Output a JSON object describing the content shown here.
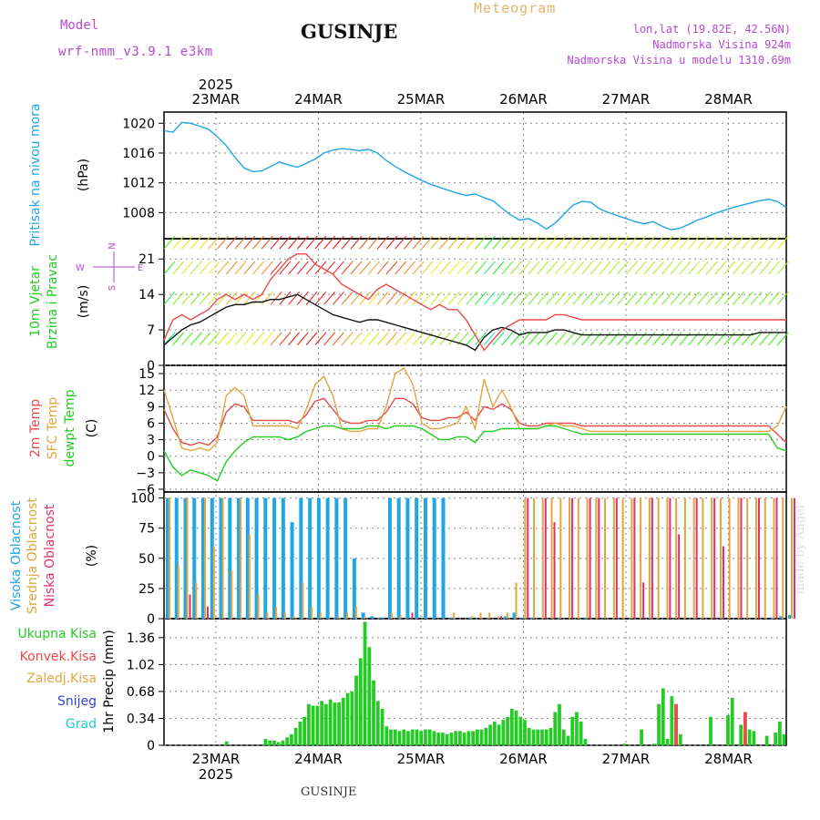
{
  "header": {
    "model_label": "Model",
    "model_version": "wrf-nmm_v3.9.1 e3km",
    "location": "GUSINJE",
    "meteogram_label": "Meteogram",
    "lonlat": "lon,lat (19.82E, 42.56N)",
    "elevation": "Nadmorska Visina 924m",
    "model_elevation": "Nadmorska Visina u modelu 1310.69m"
  },
  "footer": {
    "location": "GUSINJE",
    "credit": "made by Angel"
  },
  "time_axis": {
    "year": "2025",
    "labels": [
      "23MAR",
      "24MAR",
      "25MAR",
      "26MAR",
      "27MAR",
      "28MAR"
    ]
  },
  "colors": {
    "pressure": "#1ea6e6",
    "wind_speed": "#111111",
    "gust": "#e84a4a",
    "temp_2m": "#e84a4a",
    "temp_sfc": "#e0a640",
    "dewpoint": "#22cc22",
    "cloud_high": "#1ea6e6",
    "cloud_mid": "#e0a640",
    "cloud_low": "#e03070",
    "precip": "#22cc22",
    "precip_conv": "#e84a4a"
  },
  "chart_data": [
    {
      "type": "line",
      "panel": "pressure",
      "ylabel": "Pritisak na nivou mora",
      "units": "(hPa)",
      "ylim": [
        1004.5,
        1021.5
      ],
      "yticks": [
        1008,
        1012,
        1016,
        1020
      ],
      "xlim": [
        0,
        70
      ],
      "grid": true,
      "series": [
        {
          "name": "MSLP",
          "values": [
            1019.0,
            1018.8,
            1020.1,
            1020.0,
            1019.6,
            1019.2,
            1018.2,
            1017.0,
            1015.4,
            1014.0,
            1013.5,
            1013.6,
            1014.2,
            1014.8,
            1014.4,
            1014.1,
            1014.6,
            1015.2,
            1016.0,
            1016.4,
            1016.6,
            1016.5,
            1016.3,
            1016.5,
            1016.0,
            1015.0,
            1014.2,
            1013.5,
            1012.9,
            1012.3,
            1011.8,
            1011.4,
            1011.0,
            1010.6,
            1010.3,
            1010.5,
            1010.0,
            1009.6,
            1008.6,
            1007.7,
            1007.0,
            1007.2,
            1006.6,
            1005.8,
            1006.6,
            1007.8,
            1009.0,
            1009.5,
            1009.4,
            1008.5,
            1008.0,
            1007.6,
            1007.2,
            1006.8,
            1006.5,
            1006.8,
            1006.2,
            1005.7,
            1005.9,
            1006.4,
            1007.0,
            1007.4,
            1007.9,
            1008.3,
            1008.7,
            1009.0,
            1009.3,
            1009.6,
            1009.8,
            1009.5,
            1008.7
          ]
        }
      ]
    },
    {
      "type": "line",
      "panel": "wind",
      "ylabel": "10m Vjetar Brzina i Pravac",
      "units": "(m/s)",
      "ylim": [
        0,
        25
      ],
      "yticks": [
        0,
        7,
        14,
        21
      ],
      "compass": {
        "n": "N",
        "s": "S",
        "e": "E",
        "w": "W"
      },
      "series": [
        {
          "name": "Speed",
          "values": [
            4.0,
            5.5,
            7.0,
            8.0,
            8.5,
            9.5,
            10.5,
            11.5,
            12.0,
            12.0,
            12.5,
            12.5,
            13.0,
            13.0,
            13.5,
            14.0,
            13.0,
            12.0,
            11.0,
            10.0,
            9.5,
            9.0,
            8.5,
            9.0,
            9.0,
            8.5,
            8.0,
            7.5,
            7.0,
            6.5,
            6.0,
            5.5,
            5.0,
            4.5,
            4.0,
            3.0,
            5.5,
            7.0,
            7.5,
            7.0,
            6.0,
            6.5,
            6.5,
            6.5,
            7.0,
            7.0,
            6.5,
            6.0,
            6.0,
            6.0,
            6.0,
            6.0,
            6.0,
            6.0,
            6.0,
            6.0,
            6.0,
            6.0,
            6.0,
            6.0,
            6.0,
            6.0,
            6.0,
            6.0,
            6.0,
            6.0,
            6.0,
            6.5,
            6.5,
            6.5,
            6.5
          ]
        },
        {
          "name": "Gust",
          "values": [
            5.0,
            9.0,
            10.0,
            9.0,
            10.0,
            11.0,
            13.0,
            14.0,
            13.0,
            14.0,
            13.0,
            14.0,
            17.0,
            19.0,
            21.0,
            22.0,
            22.0,
            20.0,
            19.0,
            18.0,
            16.0,
            15.0,
            14.0,
            13.0,
            15.0,
            16.0,
            15.0,
            14.0,
            13.0,
            12.0,
            11.0,
            12.0,
            11.0,
            11.0,
            9.0,
            6.0,
            3.0,
            5.0,
            7.0,
            8.0,
            9.0,
            9.0,
            9.0,
            9.0,
            10.0,
            10.0,
            9.5,
            9.0,
            9.0,
            9.0,
            9.0,
            9.0,
            9.0,
            9.0,
            9.0,
            9.0,
            9.0,
            9.0,
            9.0,
            9.0,
            9.0,
            9.0,
            9.0,
            9.0,
            9.0,
            9.0,
            9.0,
            9.0,
            9.0,
            9.0,
            9.0
          ]
        }
      ]
    },
    {
      "type": "line",
      "panel": "temperature",
      "ylabel": "2m Temp / SFC Temp / dewpt Temp",
      "units": "(C)",
      "ylim": [
        -6.5,
        16.5
      ],
      "yticks": [
        -6,
        -3,
        0,
        3,
        6,
        9,
        12,
        15
      ],
      "legend": [
        "2m Temp",
        "SFC Temp",
        "dewpt Temp"
      ],
      "series": [
        {
          "name": "2m Temp",
          "values": [
            8.5,
            5.0,
            2.5,
            2.0,
            2.5,
            2.0,
            3.5,
            8.0,
            9.5,
            9.0,
            6.5,
            6.5,
            6.5,
            6.5,
            6.5,
            6.0,
            7.5,
            10.0,
            10.5,
            8.5,
            6.5,
            6.0,
            6.0,
            6.5,
            6.5,
            8.0,
            10.5,
            10.5,
            9.5,
            7.0,
            6.5,
            6.5,
            7.0,
            7.0,
            8.0,
            6.5,
            9.0,
            8.5,
            9.5,
            8.5,
            6.0,
            5.5,
            5.5,
            6.0,
            6.0,
            6.0,
            6.0,
            5.5,
            5.5,
            5.5,
            5.5,
            5.5,
            5.5,
            5.5,
            5.5,
            5.5,
            5.5,
            5.5,
            5.5,
            5.5,
            5.5,
            5.5,
            5.5,
            5.5,
            5.5,
            5.5,
            5.5,
            5.5,
            5.5,
            4.0,
            2.5
          ]
        },
        {
          "name": "SFC Temp",
          "values": [
            12.0,
            7.0,
            1.5,
            1.0,
            1.5,
            1.0,
            2.5,
            11.0,
            12.5,
            11.0,
            5.5,
            5.5,
            5.5,
            5.5,
            5.5,
            5.0,
            8.5,
            13.0,
            14.5,
            11.0,
            5.0,
            4.5,
            4.5,
            5.0,
            5.0,
            9.0,
            15.0,
            16.0,
            13.0,
            6.0,
            5.0,
            5.0,
            5.5,
            6.0,
            9.0,
            5.0,
            14.0,
            9.0,
            12.0,
            9.0,
            5.0,
            5.0,
            5.0,
            5.5,
            6.0,
            5.5,
            5.5,
            5.0,
            4.5,
            4.5,
            4.5,
            4.5,
            4.5,
            4.5,
            4.5,
            4.5,
            4.5,
            4.5,
            4.5,
            4.5,
            4.5,
            4.5,
            4.5,
            4.5,
            4.5,
            4.5,
            4.5,
            4.5,
            4.5,
            5.5,
            9.0
          ]
        },
        {
          "name": "dewpt Temp",
          "values": [
            1.0,
            -2.0,
            -3.5,
            -2.5,
            -3.0,
            -3.5,
            -4.5,
            -1.0,
            1.0,
            2.5,
            3.5,
            3.5,
            3.5,
            3.5,
            3.0,
            3.5,
            4.5,
            5.0,
            5.5,
            5.5,
            5.0,
            5.0,
            5.0,
            5.5,
            5.5,
            5.0,
            5.5,
            5.5,
            5.5,
            5.0,
            4.0,
            3.0,
            3.0,
            3.5,
            3.5,
            2.5,
            4.5,
            4.5,
            5.0,
            5.0,
            5.0,
            5.0,
            5.0,
            5.5,
            5.5,
            5.0,
            4.5,
            4.0,
            4.0,
            4.0,
            4.0,
            4.0,
            4.0,
            4.0,
            4.0,
            4.0,
            4.0,
            4.0,
            4.0,
            4.0,
            4.0,
            4.0,
            4.0,
            4.0,
            4.0,
            4.0,
            4.0,
            4.0,
            4.0,
            1.5,
            1.0
          ]
        }
      ]
    },
    {
      "type": "bar",
      "panel": "clouds",
      "ylabel": "Visoka / Srednja / Niska Oblacnost",
      "units": "(%)",
      "ylim": [
        0,
        105
      ],
      "yticks": [
        0,
        25,
        50,
        75,
        100
      ],
      "legend": [
        "Visoka Oblacnost",
        "Srednja Oblacnost",
        "Niska Oblacnost"
      ],
      "series": [
        {
          "name": "Visoka Oblacnost",
          "values": [
            100,
            100,
            100,
            100,
            100,
            100,
            100,
            100,
            100,
            100,
            100,
            100,
            100,
            100,
            80,
            100,
            100,
            100,
            100,
            100,
            100,
            50,
            5,
            2,
            1,
            100,
            100,
            100,
            100,
            100,
            100,
            100,
            1,
            0,
            1,
            0,
            0,
            0,
            2,
            5,
            1,
            1,
            0,
            0,
            1,
            0,
            0,
            1,
            0,
            0,
            0,
            0,
            0,
            0,
            0,
            0,
            0,
            0,
            0,
            0,
            0,
            0,
            0,
            0,
            0,
            0,
            0,
            0,
            1,
            2,
            3
          ]
        },
        {
          "name": "Srednja Oblacnost",
          "values": [
            100,
            45,
            100,
            30,
            100,
            60,
            100,
            40,
            100,
            70,
            20,
            5,
            10,
            5,
            2,
            30,
            10,
            5,
            0,
            2,
            5,
            10,
            2,
            0,
            0,
            5,
            3,
            0,
            0,
            0,
            0,
            0,
            5,
            0,
            2,
            5,
            5,
            2,
            5,
            30,
            100,
            100,
            100,
            100,
            100,
            100,
            100,
            100,
            100,
            100,
            100,
            100,
            100,
            100,
            100,
            100,
            100,
            100,
            100,
            100,
            100,
            100,
            100,
            100,
            100,
            100,
            100,
            100,
            100,
            100,
            100
          ]
        },
        {
          "name": "Niska Oblacnost",
          "values": [
            0,
            0,
            20,
            0,
            10,
            0,
            0,
            0,
            0,
            0,
            0,
            0,
            0,
            0,
            0,
            0,
            0,
            0,
            0,
            0,
            0,
            0,
            0,
            0,
            0,
            0,
            0,
            5,
            0,
            0,
            0,
            0,
            0,
            0,
            0,
            0,
            0,
            2,
            0,
            0,
            100,
            0,
            100,
            80,
            0,
            100,
            0,
            100,
            100,
            0,
            100,
            0,
            100,
            30,
            100,
            0,
            100,
            70,
            0,
            100,
            0,
            100,
            60,
            0,
            100,
            0,
            100,
            0,
            100,
            0,
            100
          ]
        }
      ]
    },
    {
      "type": "bar",
      "panel": "precipitation",
      "ylabel": "1hr Precip",
      "units": "(mm)",
      "ylim": [
        0,
        1.6
      ],
      "yticks": [
        0,
        0.34,
        0.68,
        1.02,
        1.36
      ],
      "legend": [
        "Ukupna Kisa",
        "Konvek.Kisa",
        "Zaledj.Kisa",
        "Snijeg",
        "Grad"
      ],
      "x_start_index": 5,
      "series": [
        {
          "name": "Ukupna Kisa",
          "values": [
            0.0,
            0.0,
            0.0,
            0.0,
            0.0,
            0.0,
            0.0,
            0.0,
            0.0,
            0.0,
            0.0,
            0.0,
            0.0,
            0.0,
            0.05,
            0.0,
            0.0,
            0.0,
            0.0,
            0.0,
            0.0,
            0.0,
            0.0,
            0.08,
            0.06,
            0.06,
            0.04,
            0.06,
            0.1,
            0.14,
            0.22,
            0.3,
            0.36,
            0.52,
            0.5,
            0.5,
            0.56,
            0.52,
            0.58,
            0.54,
            0.54,
            0.6,
            0.66,
            0.68,
            0.88,
            1.1,
            1.56,
            1.24,
            0.82,
            0.56,
            0.46,
            0.24,
            0.2,
            0.2,
            0.18,
            0.2,
            0.18,
            0.2,
            0.2,
            0.18,
            0.2,
            0.2,
            0.18,
            0.16,
            0.16,
            0.14,
            0.16,
            0.18,
            0.18,
            0.16,
            0.18,
            0.18,
            0.2,
            0.2,
            0.22,
            0.26,
            0.3,
            0.26,
            0.32,
            0.36,
            0.46,
            0.44,
            0.36,
            0.32,
            0.22,
            0.2,
            0.2,
            0.2,
            0.2,
            0.22,
            0.42,
            0.52,
            0.2,
            0.12,
            0.36,
            0.42,
            0.3,
            0.08,
            0.0,
            0.0,
            0.0,
            0.0,
            0.0,
            0.0,
            0.0,
            0.0,
            0.02,
            0.0,
            0.0,
            0.0,
            0.2,
            0.0,
            0.0,
            0.02,
            0.52,
            0.72,
            0.08,
            0.62,
            0.52,
            0.14,
            0.0,
            0.0,
            0.0,
            0.0,
            0.0,
            0.0,
            0.36,
            0.0,
            0.0,
            0.0,
            0.38,
            0.6,
            0.0,
            0.26,
            0.16,
            0.2,
            0.18,
            0.0,
            0.0,
            0.12,
            0.0,
            0.16,
            0.3,
            0.14
          ]
        },
        {
          "name": "Konvek.Kisa",
          "values": [
            0.0,
            0.0,
            0.0,
            0.0,
            0.0,
            0.0,
            0.0,
            0.0,
            0.0,
            0.0,
            0.0,
            0.0,
            0.0,
            0.0,
            0.0,
            0.0,
            0.0,
            0.0,
            0.0,
            0.0,
            0.0,
            0.0,
            0.0,
            0.0,
            0.0,
            0.0,
            0.0,
            0.0,
            0.0,
            0.0,
            0.0,
            0.0,
            0.0,
            0.0,
            0.0,
            0.0,
            0.0,
            0.0,
            0.0,
            0.0,
            0.0,
            0.0,
            0.0,
            0.0,
            0.0,
            0.0,
            0.0,
            0.0,
            0.0,
            0.0,
            0.0,
            0.0,
            0.0,
            0.0,
            0.0,
            0.0,
            0.0,
            0.0,
            0.0,
            0.0,
            0.0,
            0.0,
            0.0,
            0.0,
            0.0,
            0.0,
            0.0,
            0.0,
            0.0,
            0.0,
            0.0,
            0.0,
            0.0,
            0.0,
            0.0,
            0.0,
            0.0,
            0.0,
            0.0,
            0.0,
            0.0,
            0.0,
            0.0,
            0.0,
            0.0,
            0.0,
            0.0,
            0.0,
            0.0,
            0.0,
            0.0,
            0.0,
            0.0,
            0.0,
            0.0,
            0.0,
            0.0,
            0.0,
            0.0,
            0.0,
            0.0,
            0.0,
            0.0,
            0.0,
            0.0,
            0.0,
            0.0,
            0.0,
            0.0,
            0.0,
            0.0,
            0.0,
            0.0,
            0.0,
            0.0,
            0.0,
            0.0,
            0.0,
            0.52,
            0.0,
            0.0,
            0.0,
            0.0,
            0.0,
            0.0,
            0.0,
            0.0,
            0.0,
            0.0,
            0.0,
            0.0,
            0.0,
            0.0,
            0.0,
            0.42,
            0.0,
            0.0,
            0.0,
            0.0,
            0.0,
            0.0,
            0.0,
            0.0,
            0.0
          ]
        }
      ]
    }
  ]
}
